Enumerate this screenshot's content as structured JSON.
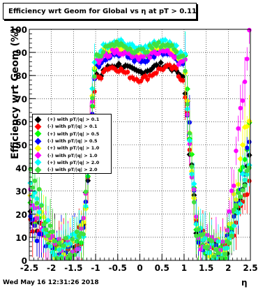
{
  "chart_data": {
    "type": "scatter",
    "title": "Efficiency wrt Geom for Global vs   η at pT > 0.11",
    "xlabel": "η",
    "ylabel": "Efficiency wrt Geom (%)",
    "xlim": [
      -2.5,
      2.5
    ],
    "ylim": [
      0,
      100
    ],
    "x_ticks": [
      "-2.5",
      "-2",
      "-1.5",
      "-1",
      "-0.5",
      "0",
      "0.5",
      "1",
      "1.5",
      "2",
      "2.5"
    ],
    "y_ticks": [
      "0",
      "10",
      "20",
      "30",
      "40",
      "50",
      "60",
      "70",
      "80",
      "90",
      "100"
    ],
    "grid": true,
    "legend_position": "left-center",
    "series": [
      {
        "name": "(+) with pT/|q| > 0.1",
        "color": "#000000",
        "plateau": 83,
        "edge_high": 47,
        "edge_low": 22
      },
      {
        "name": "(-) with pT/|q| > 0.1",
        "color": "#ff0000",
        "plateau": 81,
        "edge_high": 35,
        "edge_low": 18
      },
      {
        "name": "(+) with pT/|q| > 0.5",
        "color": "#00ff00",
        "plateau": 90,
        "edge_high": 60,
        "edge_low": 25
      },
      {
        "name": "(-) with pT/|q| > 0.5",
        "color": "#0000ff",
        "plateau": 88,
        "edge_high": 50,
        "edge_low": 15
      },
      {
        "name": "(+) with pT/|q| > 1.0",
        "color": "#ffff00",
        "plateau": 91,
        "edge_high": 67,
        "edge_low": 30
      },
      {
        "name": "(-) with pT/|q| > 1.0",
        "color": "#ff00ff",
        "plateau": 89,
        "edge_high": 100,
        "edge_low": 28
      },
      {
        "name": "(+) with pT/|q| > 2.0",
        "color": "#00ffff",
        "plateau": 93,
        "edge_high": 45,
        "edge_low": 35
      },
      {
        "name": "(-) with pT/|q| > 2.0",
        "color": "#40e040",
        "plateau": 92,
        "edge_high": 43,
        "edge_low": 40
      }
    ]
  },
  "footer": "Wed May 16 12:31:26 2018"
}
